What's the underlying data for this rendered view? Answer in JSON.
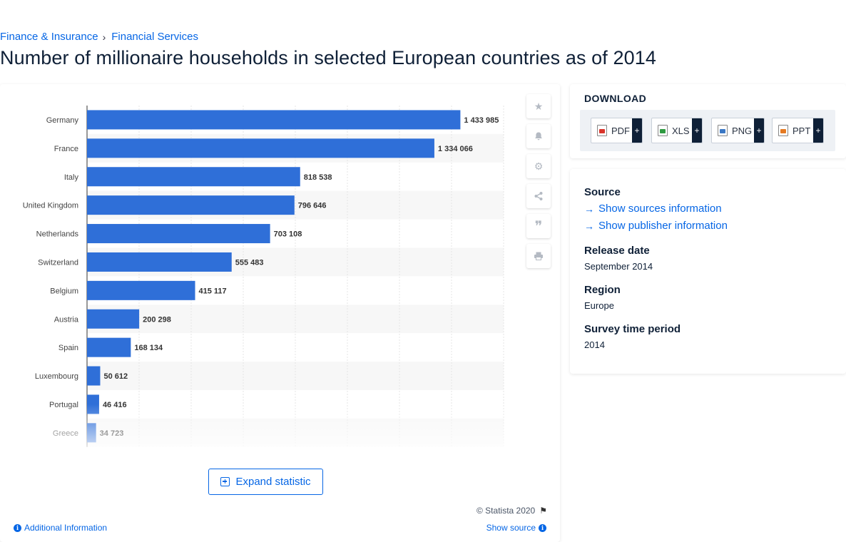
{
  "breadcrumb": {
    "item1": "Finance & Insurance",
    "separator": "›",
    "item2": "Financial Services"
  },
  "page_title": "Number of millionaire households in selected European countries as of 2014",
  "toolbar": {
    "favorite_icon": "star-icon",
    "notification_icon": "bell-icon",
    "settings_icon": "gear-icon",
    "share_icon": "share-icon",
    "cite_icon": "quote-icon",
    "print_icon": "print-icon"
  },
  "expand_label": "Expand statistic",
  "copyright": "© Statista 2020",
  "additional_info": "Additional Information",
  "show_source": "Show source",
  "download": {
    "heading": "DOWNLOAD",
    "pdf": "PDF",
    "xls": "XLS",
    "png": "PNG",
    "ppt": "PPT",
    "plus": "+"
  },
  "info": {
    "source_heading": "Source",
    "show_sources": "Show sources information",
    "show_publisher": "Show publisher information",
    "release_heading": "Release date",
    "release_value": "September 2014",
    "region_heading": "Region",
    "region_value": "Europe",
    "survey_heading": "Survey time period",
    "survey_value": "2014"
  },
  "colors": {
    "bar": "#2f6fd8",
    "accent": "#0666e5",
    "text": "#0f2037"
  },
  "chart_data": {
    "type": "bar",
    "orientation": "horizontal",
    "categories": [
      "Germany",
      "France",
      "Italy",
      "United Kingdom",
      "Netherlands",
      "Switzerland",
      "Belgium",
      "Austria",
      "Spain",
      "Luxembourg",
      "Portugal",
      "Greece"
    ],
    "values": [
      1433985,
      1334066,
      818538,
      796646,
      703108,
      555483,
      415117,
      200298,
      168134,
      50612,
      46416,
      34723
    ],
    "value_labels": [
      "1 433 985",
      "1 334 066",
      "818 538",
      "796 646",
      "703 108",
      "555 483",
      "415 117",
      "200 298",
      "168 134",
      "50 612",
      "46 416",
      "34 723"
    ],
    "xlim": [
      0,
      1600000
    ],
    "grid": true,
    "title": "",
    "xlabel": "",
    "ylabel": ""
  }
}
